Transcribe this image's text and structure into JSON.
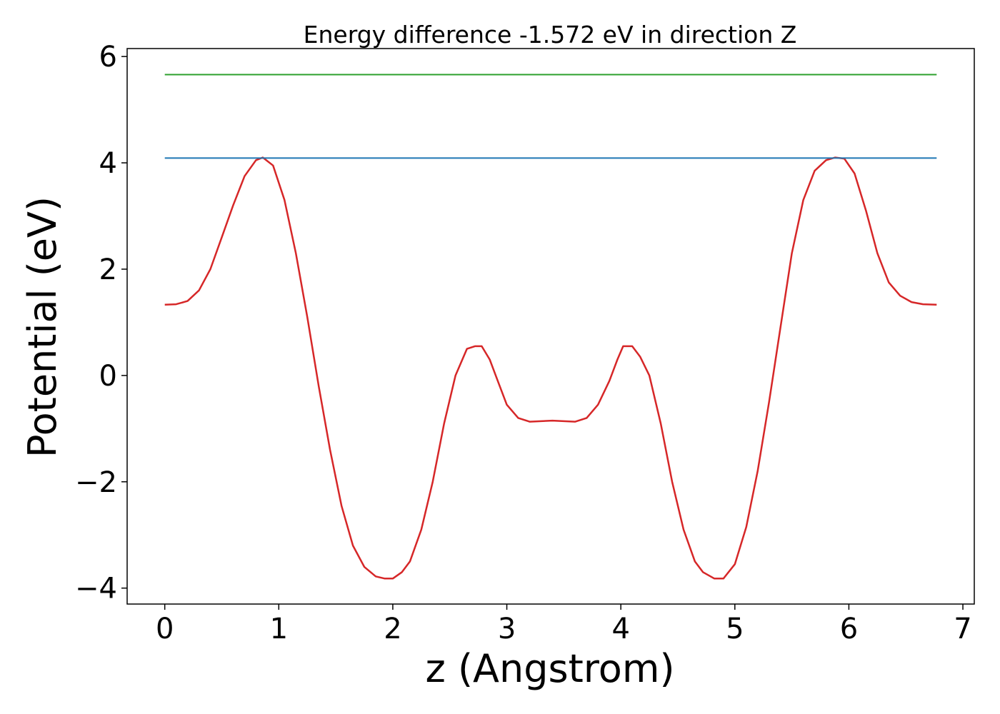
{
  "chart_data": {
    "type": "line",
    "title": "Energy difference -1.572 eV in direction Z",
    "xlabel": "z (Angstrom)",
    "ylabel": "Potential (eV)",
    "xlim": [
      -0.33,
      7.1
    ],
    "ylim": [
      -4.3,
      6.15
    ],
    "xticks": [
      0,
      1,
      2,
      3,
      4,
      5,
      6,
      7
    ],
    "xtick_labels": [
      "0",
      "1",
      "2",
      "3",
      "4",
      "5",
      "6",
      "7"
    ],
    "yticks": [
      -4,
      -2,
      0,
      2,
      4,
      6
    ],
    "ytick_labels": [
      "−4",
      "−2",
      "0",
      "2",
      "4",
      "6"
    ],
    "grid": false,
    "series": [
      {
        "color": "#d62728",
        "x": [
          0.0,
          0.1,
          0.2,
          0.3,
          0.4,
          0.5,
          0.6,
          0.7,
          0.8,
          0.86,
          0.95,
          1.05,
          1.15,
          1.25,
          1.35,
          1.45,
          1.55,
          1.65,
          1.75,
          1.85,
          1.93,
          2.0,
          2.08,
          2.15,
          2.25,
          2.35,
          2.45,
          2.55,
          2.65,
          2.72,
          2.78,
          2.85,
          2.92,
          3.0,
          3.1,
          3.2,
          3.3,
          3.4,
          3.5,
          3.6,
          3.7,
          3.8,
          3.9,
          3.97,
          4.02,
          4.1,
          4.17,
          4.25,
          4.35,
          4.45,
          4.55,
          4.65,
          4.72,
          4.82,
          4.9,
          5.0,
          5.1,
          5.2,
          5.3,
          5.4,
          5.5,
          5.6,
          5.7,
          5.8,
          5.88,
          5.96,
          6.05,
          6.15,
          6.25,
          6.35,
          6.45,
          6.55,
          6.65,
          6.77
        ],
        "y": [
          1.33,
          1.34,
          1.4,
          1.6,
          2.0,
          2.6,
          3.2,
          3.75,
          4.05,
          4.1,
          3.95,
          3.3,
          2.3,
          1.1,
          -0.2,
          -1.4,
          -2.45,
          -3.2,
          -3.6,
          -3.78,
          -3.82,
          -3.82,
          -3.7,
          -3.5,
          -2.9,
          -2.0,
          -0.9,
          0.0,
          0.5,
          0.55,
          0.55,
          0.3,
          -0.1,
          -0.55,
          -0.8,
          -0.87,
          -0.86,
          -0.85,
          -0.86,
          -0.87,
          -0.8,
          -0.55,
          -0.1,
          0.3,
          0.55,
          0.55,
          0.35,
          0.0,
          -0.9,
          -2.0,
          -2.9,
          -3.5,
          -3.7,
          -3.82,
          -3.82,
          -3.55,
          -2.85,
          -1.8,
          -0.5,
          0.9,
          2.3,
          3.3,
          3.85,
          4.05,
          4.1,
          4.08,
          3.8,
          3.1,
          2.3,
          1.75,
          1.5,
          1.38,
          1.34,
          1.33
        ]
      },
      {
        "color": "#1f77b4",
        "x": [
          0.0,
          6.77
        ],
        "y": [
          4.09,
          4.09
        ]
      },
      {
        "color": "#2ca02c",
        "x": [
          0.0,
          6.77
        ],
        "y": [
          5.66,
          5.66
        ]
      }
    ]
  }
}
